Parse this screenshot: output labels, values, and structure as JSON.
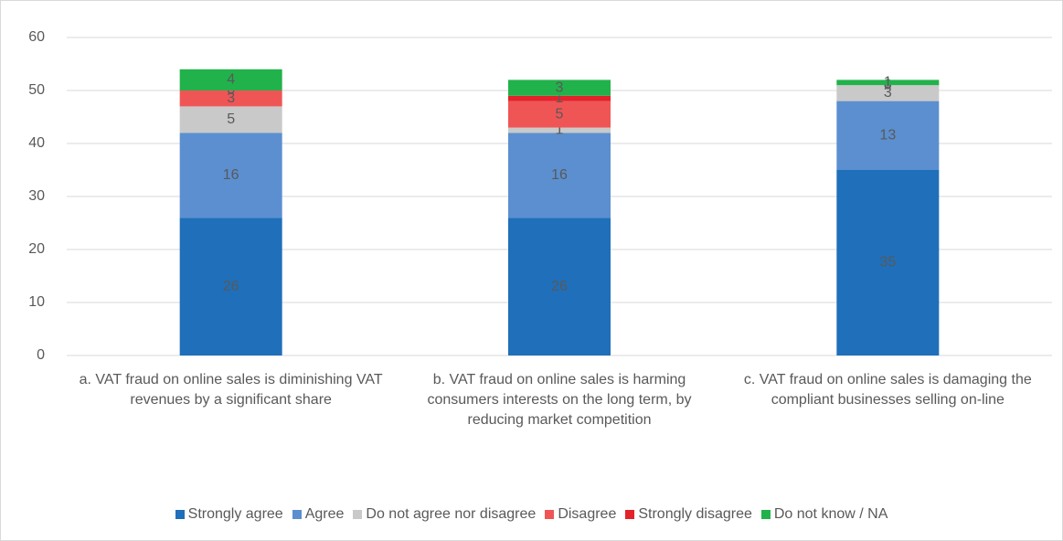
{
  "chart_data": {
    "type": "stacked_bar",
    "categories": [
      "a. VAT fraud on online sales is diminishing VAT revenues by a significant share",
      "b. VAT fraud on online sales is harming consumers interests on the long term, by reducing market competition",
      "c. VAT fraud on online sales is damaging the compliant businesses selling on-line"
    ],
    "series": [
      {
        "name": "Strongly agree",
        "color": "#1f6fba",
        "values": [
          26,
          26,
          35
        ]
      },
      {
        "name": "Agree",
        "color": "#5b8fd0",
        "values": [
          16,
          16,
          13
        ]
      },
      {
        "name": "Do not agree nor disagree",
        "color": "#c9c9c9",
        "values": [
          5,
          1,
          3
        ]
      },
      {
        "name": "Disagree",
        "color": "#f05556",
        "values": [
          3,
          5,
          0
        ]
      },
      {
        "name": "Strongly disagree",
        "color": "#e3222a",
        "values": [
          0,
          1,
          0
        ]
      },
      {
        "name": "Do not know / NA",
        "color": "#21b24b",
        "values": [
          4,
          3,
          1
        ]
      }
    ],
    "ylim": [
      0,
      60
    ],
    "yticks": [
      0,
      10,
      20,
      30,
      40,
      50,
      60
    ],
    "grid": true,
    "legend": "bottom"
  }
}
